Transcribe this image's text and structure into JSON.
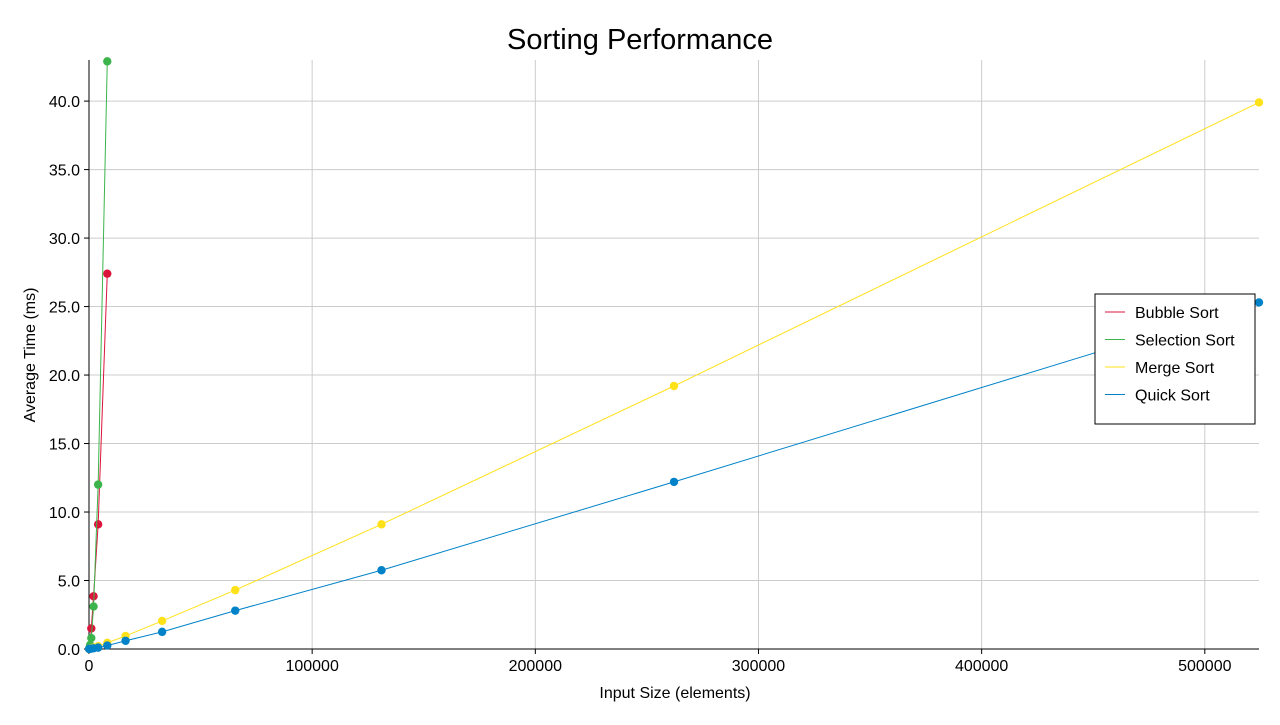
{
  "chart_data": {
    "type": "line",
    "title": "Sorting Performance",
    "xlabel": "Input Size (elements)",
    "ylabel": "Average Time (ms)",
    "xlim": [
      0,
      524288
    ],
    "ylim": [
      0,
      43
    ],
    "xticks": [
      0,
      100000,
      200000,
      300000,
      400000,
      500000
    ],
    "xtick_labels": [
      "0",
      "100000",
      "200000",
      "300000",
      "400000",
      "500000"
    ],
    "yticks": [
      0,
      5,
      10,
      15,
      20,
      25,
      30,
      35,
      40
    ],
    "ytick_labels": [
      "0.0",
      "5.0",
      "10.0",
      "15.0",
      "20.0",
      "25.0",
      "30.0",
      "35.0",
      "40.0"
    ],
    "grid": true,
    "legend_position": "right",
    "series": [
      {
        "name": "Bubble Sort",
        "color": "#dc143c",
        "x": [
          64,
          128,
          256,
          512,
          1024,
          2048,
          4096,
          8192
        ],
        "y": [
          0.01,
          0.02,
          0.06,
          0.24,
          1.5,
          3.85,
          9.1,
          27.4
        ]
      },
      {
        "name": "Selection Sort",
        "color": "#3cb44b",
        "x": [
          64,
          128,
          256,
          512,
          1024,
          2048,
          4096,
          8192
        ],
        "y": [
          0.01,
          0.03,
          0.1,
          0.3,
          0.8,
          3.1,
          12.0,
          42.9
        ]
      },
      {
        "name": "Merge Sort",
        "color": "#ffe119",
        "x": [
          64,
          128,
          256,
          512,
          1024,
          2048,
          4096,
          8192,
          16384,
          32768,
          65536,
          131072,
          262144,
          524288
        ],
        "y": [
          0.01,
          0.01,
          0.02,
          0.04,
          0.06,
          0.1,
          0.2,
          0.45,
          0.95,
          2.05,
          4.3,
          9.1,
          19.2,
          39.9
        ]
      },
      {
        "name": "Quick Sort",
        "color": "#0082c8",
        "x": [
          64,
          128,
          256,
          512,
          1024,
          2048,
          4096,
          8192,
          16384,
          32768,
          65536,
          131072,
          262144,
          524288
        ],
        "y": [
          0.01,
          0.01,
          0.01,
          0.02,
          0.03,
          0.05,
          0.1,
          0.25,
          0.6,
          1.25,
          2.8,
          5.75,
          12.2,
          25.3
        ]
      }
    ]
  }
}
